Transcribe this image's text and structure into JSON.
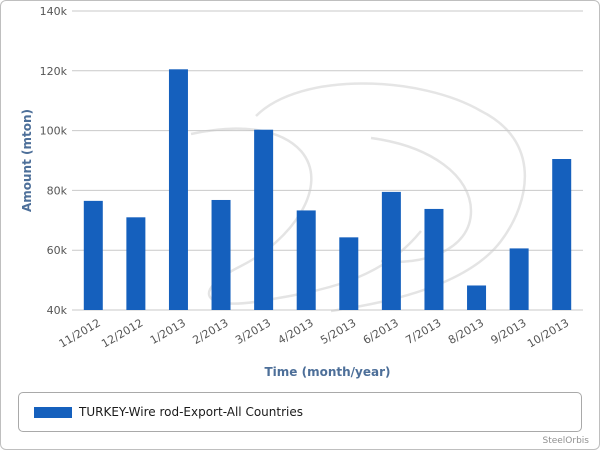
{
  "colors": {
    "series": "#1560bd",
    "grid": "#c9c9c9",
    "axis_title": "#4d6f99",
    "tick_text": "#555555"
  },
  "chart_data": {
    "type": "bar",
    "categories": [
      "11/2012",
      "12/2012",
      "1/2013",
      "2/2013",
      "3/2013",
      "4/2013",
      "5/2013",
      "6/2013",
      "7/2013",
      "8/2013",
      "9/2013",
      "10/2013"
    ],
    "series": [
      {
        "name": "TURKEY-Wire rod-Export-All Countries",
        "values": [
          76500,
          71000,
          120500,
          76800,
          100300,
          73300,
          64300,
          79500,
          73800,
          48200,
          60600,
          90500
        ]
      }
    ],
    "xlabel": "Time (month/year)",
    "ylabel": "Amount (mton)",
    "ylim": [
      40000,
      140000
    ],
    "yticks": [
      40000,
      60000,
      80000,
      100000,
      120000,
      140000
    ],
    "ytick_labels": [
      "40k",
      "60k",
      "80k",
      "100k",
      "120k",
      "140k"
    ],
    "grid": true,
    "legend_position": "bottom"
  },
  "credits": "SteelOrbis"
}
